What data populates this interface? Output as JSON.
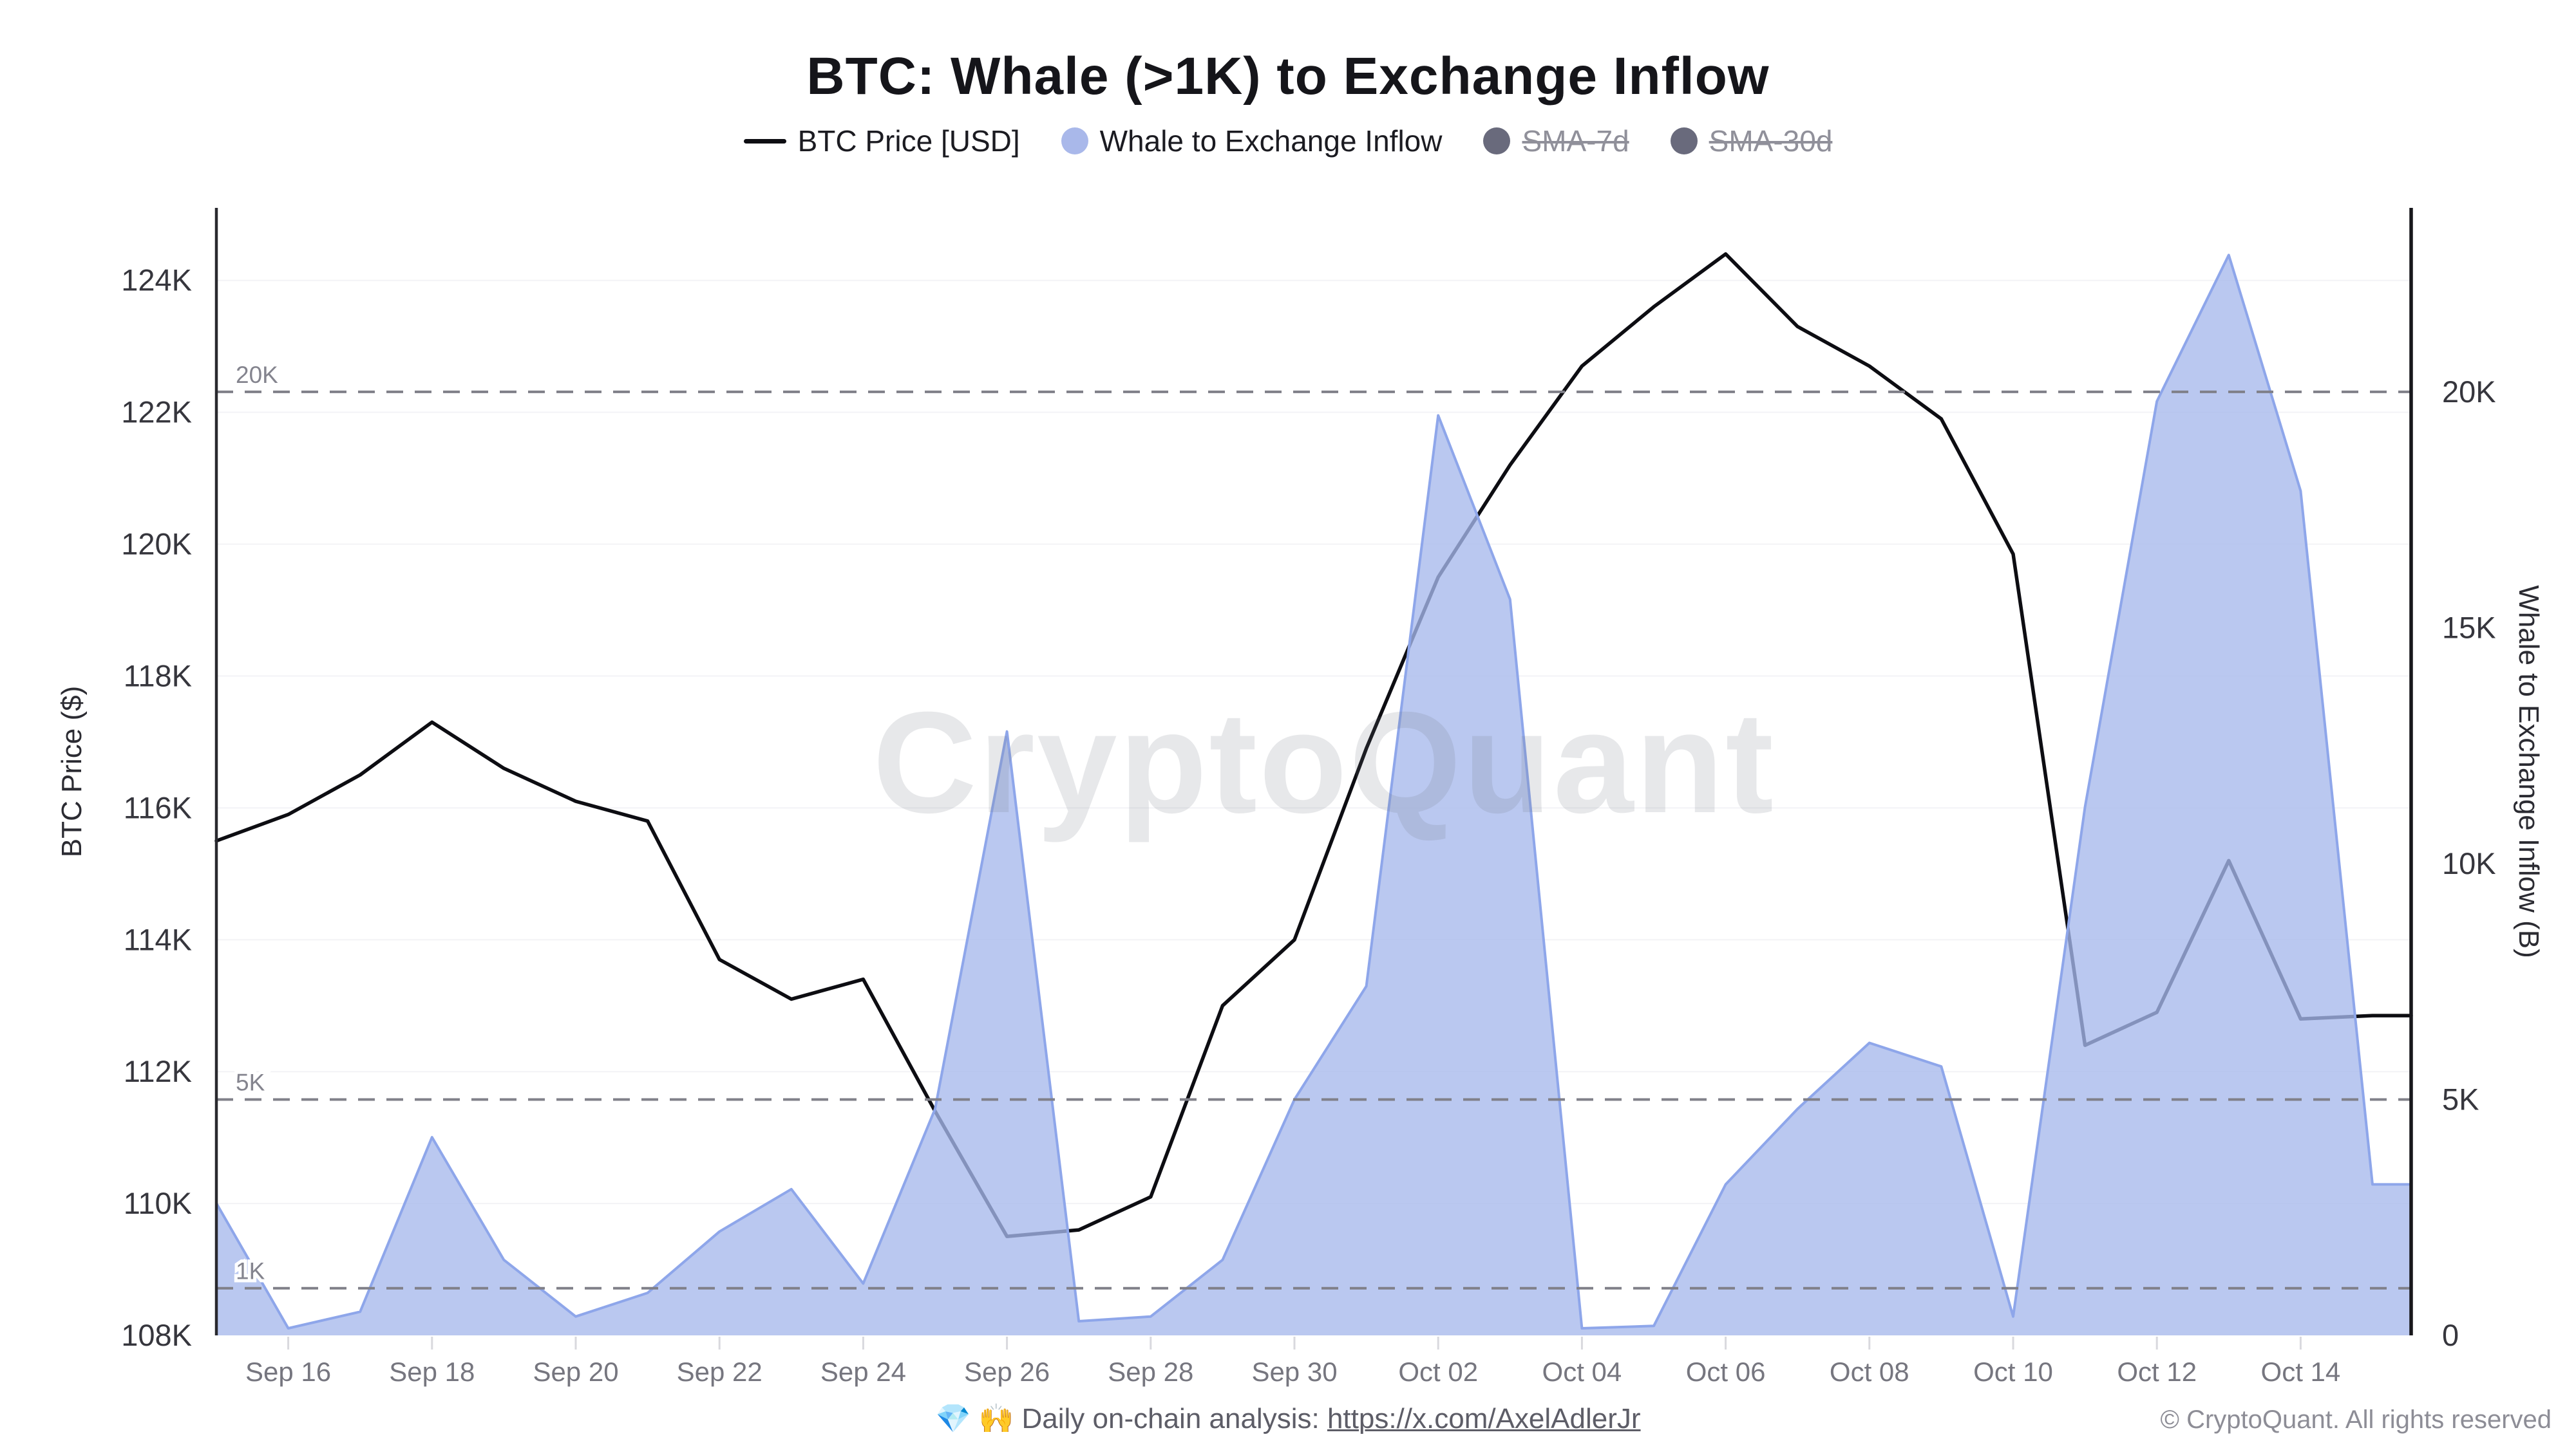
{
  "title": "BTC: Whale (>1K) to Exchange Inflow",
  "legend": {
    "items": [
      {
        "label": "BTC Price [USD]",
        "swatch": "line",
        "color": "#0d0d12",
        "disabled": false
      },
      {
        "label": "Whale to Exchange Inflow",
        "swatch": "dot",
        "color": "#a9b8ea",
        "disabled": false
      },
      {
        "label": "SMA-7d",
        "swatch": "dot",
        "color": "#696a7c",
        "disabled": true
      },
      {
        "label": "SMA-30d",
        "swatch": "dot",
        "color": "#696a7c",
        "disabled": true
      }
    ]
  },
  "axes": {
    "left_title": "BTC Price ($)",
    "right_title": "Whale to Exchange Inflow (B)"
  },
  "watermark": "CryptoQuant",
  "footer": {
    "emoji": "💎 🙌",
    "note": "Daily on-chain analysis:",
    "link": "https://x.com/AxelAdlerJr",
    "copyright": "© CryptoQuant. All rights reserved"
  },
  "chart_data": {
    "type": "area",
    "subtype": "dual-axis combo: black price line (left axis, USD) + periwinkle area (right axis, BTC)",
    "x": [
      "Sep 15",
      "Sep 16",
      "Sep 17",
      "Sep 18",
      "Sep 19",
      "Sep 20",
      "Sep 21",
      "Sep 22",
      "Sep 23",
      "Sep 24",
      "Sep 25",
      "Sep 26",
      "Sep 27",
      "Sep 28",
      "Sep 29",
      "Sep 30",
      "Oct 01",
      "Oct 02",
      "Oct 03",
      "Oct 04",
      "Oct 05",
      "Oct 06",
      "Oct 07",
      "Oct 08",
      "Oct 09",
      "Oct 10",
      "Oct 11",
      "Oct 12",
      "Oct 13",
      "Oct 14",
      "Oct 15"
    ],
    "x_tick_indices": [
      1,
      3,
      5,
      7,
      9,
      11,
      13,
      15,
      17,
      19,
      21,
      23,
      25,
      27,
      29
    ],
    "x_tick_labels": [
      "Sep 16",
      "Sep 18",
      "Sep 20",
      "Sep 22",
      "Sep 24",
      "Sep 26",
      "Sep 28",
      "Sep 30",
      "Oct 02",
      "Oct 04",
      "Oct 06",
      "Oct 08",
      "Oct 10",
      "Oct 12",
      "Oct 14"
    ],
    "series": [
      {
        "name": "BTC Price [USD]",
        "type": "line",
        "axis": "left",
        "unit": "thousand USD",
        "color": "#0d0d12",
        "values": [
          115.5,
          115.9,
          116.5,
          117.3,
          116.6,
          116.1,
          115.8,
          113.7,
          113.1,
          113.4,
          111.4,
          109.5,
          109.6,
          110.1,
          113.0,
          114.0,
          116.9,
          119.5,
          121.2,
          122.7,
          123.6,
          124.4,
          123.3,
          122.7,
          121.9,
          119.85,
          112.4,
          112.9,
          115.2,
          112.8,
          112.85
        ]
      },
      {
        "name": "Whale to Exchange Inflow",
        "type": "area",
        "axis": "right",
        "unit": "thousand BTC",
        "fill": "#a7b8ec",
        "fill_opacity": 0.78,
        "stroke": "#8ea6ea",
        "values": [
          2.8,
          0.15,
          0.5,
          4.2,
          1.6,
          0.4,
          0.9,
          2.2,
          3.1,
          1.1,
          4.8,
          12.8,
          0.3,
          0.4,
          1.6,
          5.0,
          7.4,
          19.5,
          15.6,
          0.15,
          0.2,
          3.2,
          4.8,
          6.2,
          5.7,
          0.4,
          11.2,
          19.8,
          22.9,
          17.9,
          3.2
        ]
      },
      {
        "name": "SMA-7d",
        "type": "line",
        "axis": "right",
        "disabled": true,
        "values": []
      },
      {
        "name": "SMA-30d",
        "type": "line",
        "axis": "right",
        "disabled": true,
        "values": []
      }
    ],
    "left_axis": {
      "range_k_usd": [
        108,
        125.1
      ],
      "ticks": [
        108,
        110,
        112,
        114,
        116,
        118,
        120,
        122,
        124
      ],
      "tick_suffix": "K"
    },
    "right_axis": {
      "range_k_btc": [
        0,
        23.9
      ],
      "ticks": [
        0,
        5,
        10,
        15,
        20
      ],
      "tick_suffix": "K"
    },
    "reference_lines": {
      "axis": "right",
      "values_k": [
        20,
        5,
        1
      ],
      "labels": [
        "20K",
        "5K",
        "1K"
      ],
      "style": "gray dashed"
    },
    "grid": "very faint solid horizontal lines at left-axis ticks",
    "legend_position": "top center"
  },
  "style": {
    "dash_color": "#808089",
    "grid_color": "#f3f3f6",
    "left_spine": "#29292e",
    "right_spine": "#17171b",
    "tick_label_color": "#36363d",
    "x_label_color": "#76767f",
    "ref_label_color": "#84848e",
    "watermark_color": "#6f7685"
  }
}
